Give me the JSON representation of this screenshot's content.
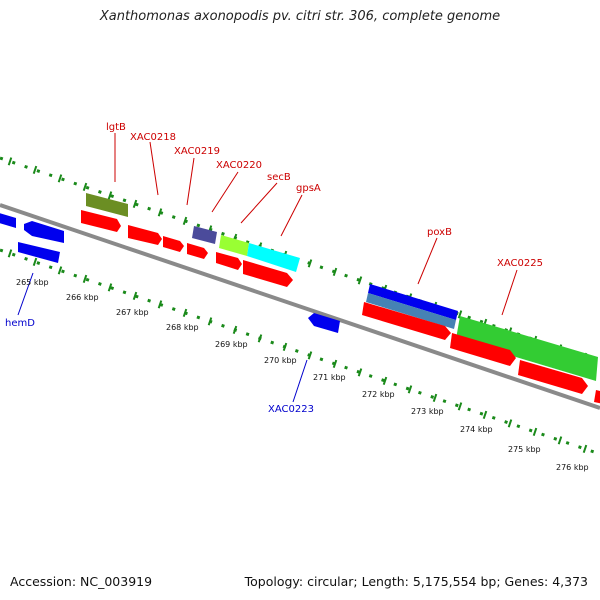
{
  "title": "Xanthomonas axonopodis pv. citri str. 306, complete genome",
  "footer": {
    "accession": "Accession: NC_003919",
    "summary": "Topology: circular; Length: 5,175,554 bp; Genes: 4,373"
  },
  "colors": {
    "backbone": "#8a8a8a",
    "tick_dotted": "#1a8a1a",
    "label_red": "#cc0000",
    "label_blue": "#0000cc",
    "feature_red": "#ff0000",
    "feature_blue": "#0000ee",
    "feature_green": "#33cc33",
    "feature_olive": "#6b8e23",
    "feature_purple": "#4b4b9b",
    "feature_lime": "#99ff33",
    "feature_cyan": "#00ffff",
    "feature_steel": "#4682b4"
  },
  "scale_labels": [
    "265 kbp",
    "266 kbp",
    "267 kbp",
    "268 kbp",
    "269 kbp",
    "270 kbp",
    "271 kbp",
    "272 kbp",
    "273 kbp",
    "274 kbp",
    "275 kbp",
    "276 kbp"
  ],
  "gene_labels_top": [
    "lgtB",
    "XAC0218",
    "XAC0219",
    "XAC0220",
    "secB",
    "gpsA",
    "poxB",
    "XAC0225"
  ],
  "gene_labels_bottom": [
    "hemD",
    "XAC0223"
  ]
}
